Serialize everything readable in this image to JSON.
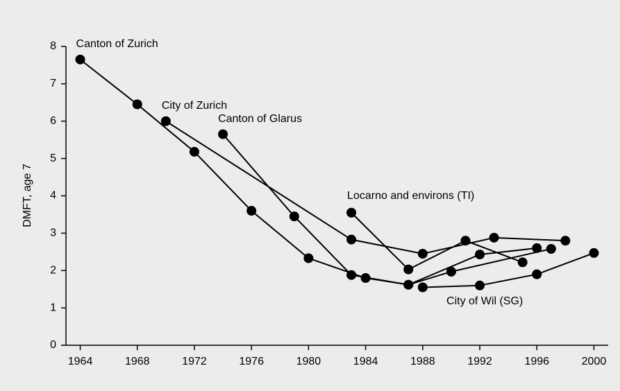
{
  "chart_data": {
    "type": "line",
    "y_label": "DMFT, age 7",
    "xlim": [
      1963,
      2001
    ],
    "xticks": [
      1964,
      1968,
      1972,
      1976,
      1980,
      1984,
      1988,
      1992,
      1996,
      2000
    ],
    "ylim": [
      0,
      8
    ],
    "yticks": [
      0,
      1,
      2,
      3,
      4,
      5,
      6,
      7,
      8
    ],
    "color": "#000000",
    "series": [
      {
        "name": "Canton of Zurich",
        "x": [
          1964,
          1968,
          1972,
          1976,
          1980,
          1984,
          1987,
          1992,
          1996
        ],
        "values": [
          7.65,
          6.45,
          5.18,
          3.6,
          2.33,
          1.8,
          1.62,
          2.43,
          2.6
        ]
      },
      {
        "name": "City of Zurich",
        "x": [
          1970,
          1983,
          1988,
          1993,
          1998
        ],
        "values": [
          6.0,
          2.83,
          2.45,
          2.88,
          2.8
        ]
      },
      {
        "name": "Canton of Glarus",
        "x": [
          1974,
          1979,
          1983,
          1987,
          1990,
          1997
        ],
        "values": [
          5.65,
          3.45,
          1.88,
          1.62,
          1.97,
          2.58
        ]
      },
      {
        "name": "Locarno and environs (TI)",
        "x": [
          1983,
          1987,
          1991,
          1995
        ],
        "values": [
          3.55,
          2.03,
          2.8,
          2.22
        ]
      },
      {
        "name": "City of Wil (SG)",
        "x": [
          1988,
          1992,
          1996,
          2000
        ],
        "values": [
          1.55,
          1.6,
          1.9,
          2.47
        ]
      }
    ]
  }
}
